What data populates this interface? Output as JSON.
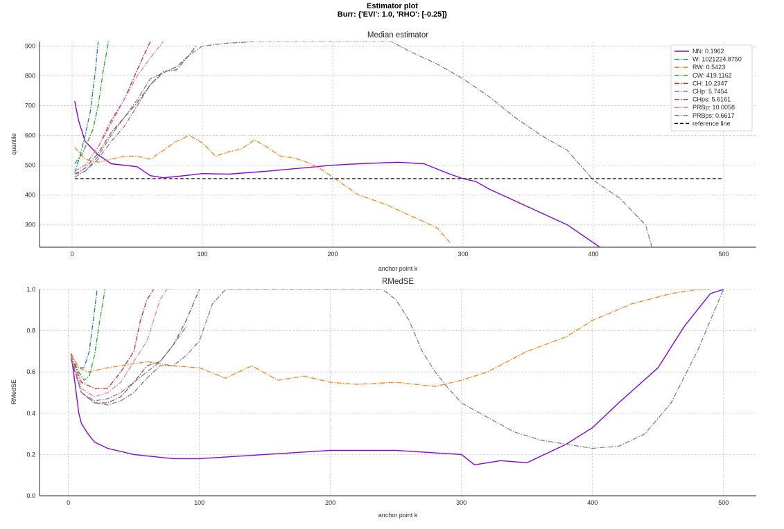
{
  "suptitle": [
    "Estimator plot",
    "Burr: {'EVI': 1.0, 'RHO': [-0.25]}"
  ],
  "colors": {
    "NN": "#8A00E6",
    "W": "#1f77b4",
    "RW": "#ff7f0e",
    "CW": "#2ca02c",
    "CH": "#d62728",
    "CHp": "#9467bd",
    "CHps": "#8c564b",
    "PRBp": "#e377c2",
    "PRBps": "#7f7f7f",
    "reference": "#000000"
  },
  "chart_data": [
    {
      "type": "line",
      "title": "Median estimator",
      "xlabel": "anchor point k",
      "ylabel": "quantile",
      "xlim": [
        -25,
        525
      ],
      "ylim": [
        225,
        915
      ],
      "xticks": [
        0,
        100,
        200,
        300,
        400,
        500
      ],
      "yticks": [
        300,
        400,
        500,
        600,
        700,
        800,
        900
      ],
      "grid": true,
      "legend_position": "top-right",
      "series": [
        {
          "key": "NN",
          "name": "NN: 0.1962",
          "style": "solid",
          "x": [
            2,
            5,
            10,
            20,
            30,
            50,
            60,
            70,
            80,
            100,
            120,
            150,
            180,
            200,
            220,
            250,
            270,
            290,
            300,
            310,
            320,
            340,
            360,
            380,
            400,
            405
          ],
          "y": [
            715,
            650,
            580,
            535,
            505,
            495,
            465,
            458,
            462,
            472,
            470,
            480,
            492,
            500,
            505,
            510,
            505,
            470,
            455,
            445,
            420,
            380,
            340,
            300,
            240,
            225
          ]
        },
        {
          "key": "W",
          "name": "W: 1021224.8750",
          "style": "dashdot",
          "x": [
            2,
            6,
            10,
            14,
            18,
            20
          ],
          "y": [
            475,
            530,
            600,
            680,
            820,
            915
          ]
        },
        {
          "key": "RW",
          "name": "RW: 0.5423",
          "style": "dashdot",
          "x": [
            2,
            10,
            20,
            30,
            40,
            50,
            60,
            70,
            80,
            90,
            100,
            110,
            120,
            130,
            140,
            150,
            160,
            170,
            180,
            190,
            200,
            210,
            220,
            240,
            260,
            280,
            290
          ],
          "y": [
            560,
            520,
            510,
            520,
            530,
            530,
            520,
            550,
            580,
            600,
            575,
            530,
            545,
            555,
            585,
            560,
            530,
            525,
            510,
            490,
            460,
            430,
            400,
            370,
            330,
            290,
            240
          ]
        },
        {
          "key": "CW",
          "name": "CW: 419.1162",
          "style": "dashdot",
          "x": [
            2,
            8,
            12,
            16,
            20,
            24,
            28
          ],
          "y": [
            505,
            540,
            580,
            620,
            700,
            820,
            915
          ]
        },
        {
          "key": "CH",
          "name": "CH: 10.2347",
          "style": "dashdot",
          "x": [
            2,
            10,
            20,
            30,
            40,
            50,
            60
          ],
          "y": [
            480,
            500,
            560,
            650,
            720,
            820,
            915
          ]
        },
        {
          "key": "CHp",
          "name": "CHp: 5.7454",
          "style": "dashdot",
          "x": [
            2,
            10,
            20,
            30,
            40,
            50,
            60,
            70,
            80,
            90
          ],
          "y": [
            460,
            480,
            520,
            580,
            630,
            700,
            770,
            810,
            830,
            870
          ]
        },
        {
          "key": "CHps",
          "name": "CHps: 5.6161",
          "style": "dashdot",
          "x": [
            2,
            10,
            20,
            30,
            40,
            50,
            60,
            70,
            80,
            90,
            95
          ],
          "y": [
            470,
            490,
            540,
            610,
            660,
            710,
            770,
            815,
            820,
            870,
            900
          ]
        },
        {
          "key": "PRBp",
          "name": "PRBp: 10.0058",
          "style": "dashdot",
          "x": [
            2,
            10,
            20,
            30,
            40,
            50,
            60,
            70
          ],
          "y": [
            480,
            500,
            560,
            640,
            720,
            800,
            860,
            915
          ]
        },
        {
          "key": "PRBps",
          "name": "PRBps: 0.6617",
          "style": "dashdot",
          "x": [
            2,
            10,
            20,
            30,
            40,
            50,
            60,
            70,
            80,
            90,
            100,
            110,
            120,
            130,
            140,
            150,
            160,
            170,
            245,
            260,
            280,
            300,
            320,
            340,
            360,
            380,
            400,
            420,
            440,
            445
          ],
          "y": [
            470,
            480,
            530,
            600,
            660,
            720,
            790,
            810,
            830,
            870,
            900,
            905,
            910,
            912,
            915,
            915,
            915,
            915,
            915,
            880,
            840,
            790,
            730,
            660,
            600,
            550,
            450,
            390,
            300,
            225
          ]
        },
        {
          "key": "reference",
          "name": "reference line",
          "style": "dashed",
          "x": [
            2,
            500
          ],
          "y": [
            455,
            455
          ]
        }
      ]
    },
    {
      "type": "line",
      "title": "RMedSE",
      "xlabel": "anchor point k",
      "ylabel": "RMedSE",
      "xlim": [
        -22,
        525
      ],
      "ylim": [
        0.0,
        1.0
      ],
      "xticks": [
        0,
        100,
        200,
        300,
        400,
        500
      ],
      "yticks": [
        0.0,
        0.2,
        0.4,
        0.6,
        0.8,
        1.0
      ],
      "ytick_labels": [
        "0.0",
        "0.2",
        "0.4",
        "0.6",
        "0.8",
        "1.0"
      ],
      "grid": true,
      "series": [
        {
          "key": "NN",
          "style": "solid",
          "x": [
            2,
            5,
            8,
            10,
            15,
            20,
            30,
            50,
            80,
            100,
            150,
            200,
            250,
            300,
            310,
            330,
            350,
            380,
            400,
            420,
            450,
            470,
            490,
            500
          ],
          "y": [
            0.69,
            0.55,
            0.4,
            0.35,
            0.3,
            0.26,
            0.23,
            0.2,
            0.18,
            0.18,
            0.2,
            0.22,
            0.22,
            0.2,
            0.15,
            0.17,
            0.16,
            0.25,
            0.33,
            0.45,
            0.62,
            0.82,
            0.98,
            1.0
          ]
        },
        {
          "key": "W",
          "style": "dashdot",
          "x": [
            2,
            8,
            12,
            16,
            20,
            22
          ],
          "y": [
            0.69,
            0.62,
            0.62,
            0.7,
            0.9,
            1.0
          ]
        },
        {
          "key": "RW",
          "style": "dashdot",
          "x": [
            2,
            8,
            15,
            30,
            60,
            80,
            100,
            120,
            140,
            160,
            180,
            200,
            220,
            250,
            280,
            300,
            320,
            350,
            380,
            400,
            430,
            460,
            480,
            490
          ],
          "y": [
            0.69,
            0.62,
            0.6,
            0.62,
            0.65,
            0.63,
            0.62,
            0.57,
            0.63,
            0.56,
            0.58,
            0.55,
            0.54,
            0.55,
            0.53,
            0.56,
            0.6,
            0.7,
            0.77,
            0.85,
            0.93,
            0.98,
            1.0,
            1.0
          ]
        },
        {
          "key": "CW",
          "style": "dashdot",
          "x": [
            2,
            8,
            12,
            16,
            20,
            24,
            28
          ],
          "y": [
            0.68,
            0.6,
            0.56,
            0.58,
            0.68,
            0.85,
            1.0
          ]
        },
        {
          "key": "CH",
          "style": "dashdot",
          "x": [
            2,
            10,
            20,
            30,
            40,
            50,
            55,
            60,
            65
          ],
          "y": [
            0.68,
            0.55,
            0.52,
            0.52,
            0.6,
            0.7,
            0.85,
            0.95,
            1.0
          ]
        },
        {
          "key": "CHp",
          "style": "dashdot",
          "x": [
            2,
            10,
            20,
            30,
            40,
            50,
            60,
            70,
            80,
            90
          ],
          "y": [
            0.66,
            0.5,
            0.46,
            0.47,
            0.5,
            0.55,
            0.6,
            0.65,
            0.73,
            0.82
          ]
        },
        {
          "key": "CHps",
          "style": "dashdot",
          "x": [
            2,
            10,
            20,
            30,
            40,
            50,
            60,
            70,
            80,
            90,
            100
          ],
          "y": [
            0.67,
            0.5,
            0.45,
            0.45,
            0.48,
            0.55,
            0.63,
            0.65,
            0.73,
            0.85,
            1.0
          ]
        },
        {
          "key": "PRBp",
          "style": "dashdot",
          "x": [
            2,
            10,
            20,
            30,
            40,
            50,
            60,
            65,
            70,
            75,
            80
          ],
          "y": [
            0.68,
            0.52,
            0.48,
            0.5,
            0.55,
            0.65,
            0.75,
            0.85,
            0.95,
            1.0,
            1.0
          ]
        },
        {
          "key": "PRBps",
          "style": "dashdot",
          "x": [
            2,
            10,
            20,
            30,
            40,
            50,
            60,
            70,
            80,
            90,
            100,
            110,
            120,
            130,
            170,
            240,
            250,
            260,
            270,
            280,
            290,
            300,
            320,
            340,
            360,
            380,
            400,
            420,
            440,
            460,
            480,
            490,
            500
          ],
          "y": [
            0.66,
            0.5,
            0.45,
            0.44,
            0.46,
            0.5,
            0.57,
            0.63,
            0.63,
            0.68,
            0.75,
            0.93,
            1.0,
            1.0,
            1.0,
            1.0,
            0.95,
            0.85,
            0.7,
            0.6,
            0.52,
            0.45,
            0.38,
            0.31,
            0.27,
            0.25,
            0.23,
            0.24,
            0.3,
            0.45,
            0.7,
            0.85,
            1.0
          ]
        }
      ]
    }
  ]
}
